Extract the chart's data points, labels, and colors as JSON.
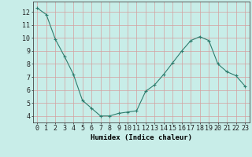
{
  "x": [
    0,
    1,
    2,
    3,
    4,
    5,
    6,
    7,
    8,
    9,
    10,
    11,
    12,
    13,
    14,
    15,
    16,
    17,
    18,
    19,
    20,
    21,
    22,
    23
  ],
  "y": [
    12.3,
    11.8,
    9.9,
    8.6,
    7.2,
    5.2,
    4.6,
    4.0,
    4.0,
    4.2,
    4.3,
    4.4,
    5.9,
    6.4,
    7.2,
    8.1,
    9.0,
    9.8,
    10.1,
    9.8,
    8.0,
    7.4,
    7.1,
    6.3
  ],
  "line_color": "#2e7d6e",
  "marker": "+",
  "marker_size": 3,
  "bg_color": "#c8ede8",
  "grid_color": "#d4a0a0",
  "xlabel": "Humidex (Indice chaleur)",
  "xlim": [
    -0.5,
    23.5
  ],
  "ylim": [
    3.5,
    12.8
  ],
  "yticks": [
    4,
    5,
    6,
    7,
    8,
    9,
    10,
    11,
    12
  ],
  "xticks": [
    0,
    1,
    2,
    3,
    4,
    5,
    6,
    7,
    8,
    9,
    10,
    11,
    12,
    13,
    14,
    15,
    16,
    17,
    18,
    19,
    20,
    21,
    22,
    23
  ],
  "xlabel_fontsize": 6.5,
  "tick_fontsize": 6.0
}
